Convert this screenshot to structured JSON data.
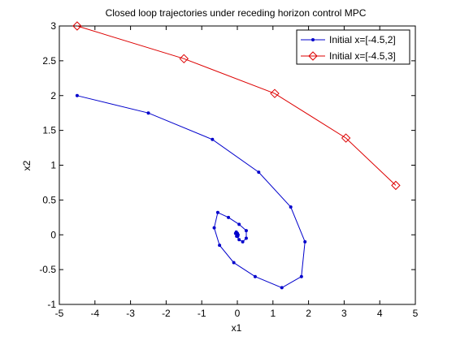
{
  "chart_data": {
    "type": "line",
    "title": "Closed loop trajectories under receding horizon control MPC",
    "xlabel": "x1",
    "ylabel": "x2",
    "xlim": [
      -5,
      5
    ],
    "ylim": [
      -1,
      3
    ],
    "xticks": [
      "-5",
      "-4",
      "-3",
      "-2",
      "-1",
      "0",
      "1",
      "2",
      "3",
      "4",
      "5"
    ],
    "yticks": [
      "-1",
      "-0.5",
      "0",
      "0.5",
      "1",
      "1.5",
      "2",
      "2.5",
      "3"
    ],
    "grid": false,
    "legend_position": "top-right",
    "series": [
      {
        "name": "Initial x=[-4.5,2]",
        "color": "#0000cc",
        "marker": "dot",
        "x": [
          -4.5,
          -2.5,
          -0.7,
          0.6,
          1.5,
          1.9,
          1.8,
          1.25,
          0.5,
          -0.1,
          -0.5,
          -0.65,
          -0.55,
          -0.25,
          0.05,
          0.25,
          0.25,
          0.15,
          0.05,
          -0.02,
          -0.05,
          -0.03,
          0.0,
          0.02,
          0.01,
          0.0
        ],
        "y": [
          2.0,
          1.75,
          1.37,
          0.9,
          0.4,
          -0.1,
          -0.6,
          -0.76,
          -0.6,
          -0.4,
          -0.15,
          0.1,
          0.32,
          0.25,
          0.15,
          0.06,
          -0.05,
          -0.1,
          -0.07,
          -0.02,
          0.02,
          0.04,
          0.02,
          0.0,
          -0.02,
          0.0
        ]
      },
      {
        "name": "Initial x=[-4.5,3]",
        "color": "#dd0000",
        "marker": "diamond",
        "x": [
          -4.5,
          -1.5,
          1.05,
          3.05,
          4.45
        ],
        "y": [
          3.0,
          2.53,
          2.03,
          1.39,
          0.71
        ]
      }
    ]
  }
}
